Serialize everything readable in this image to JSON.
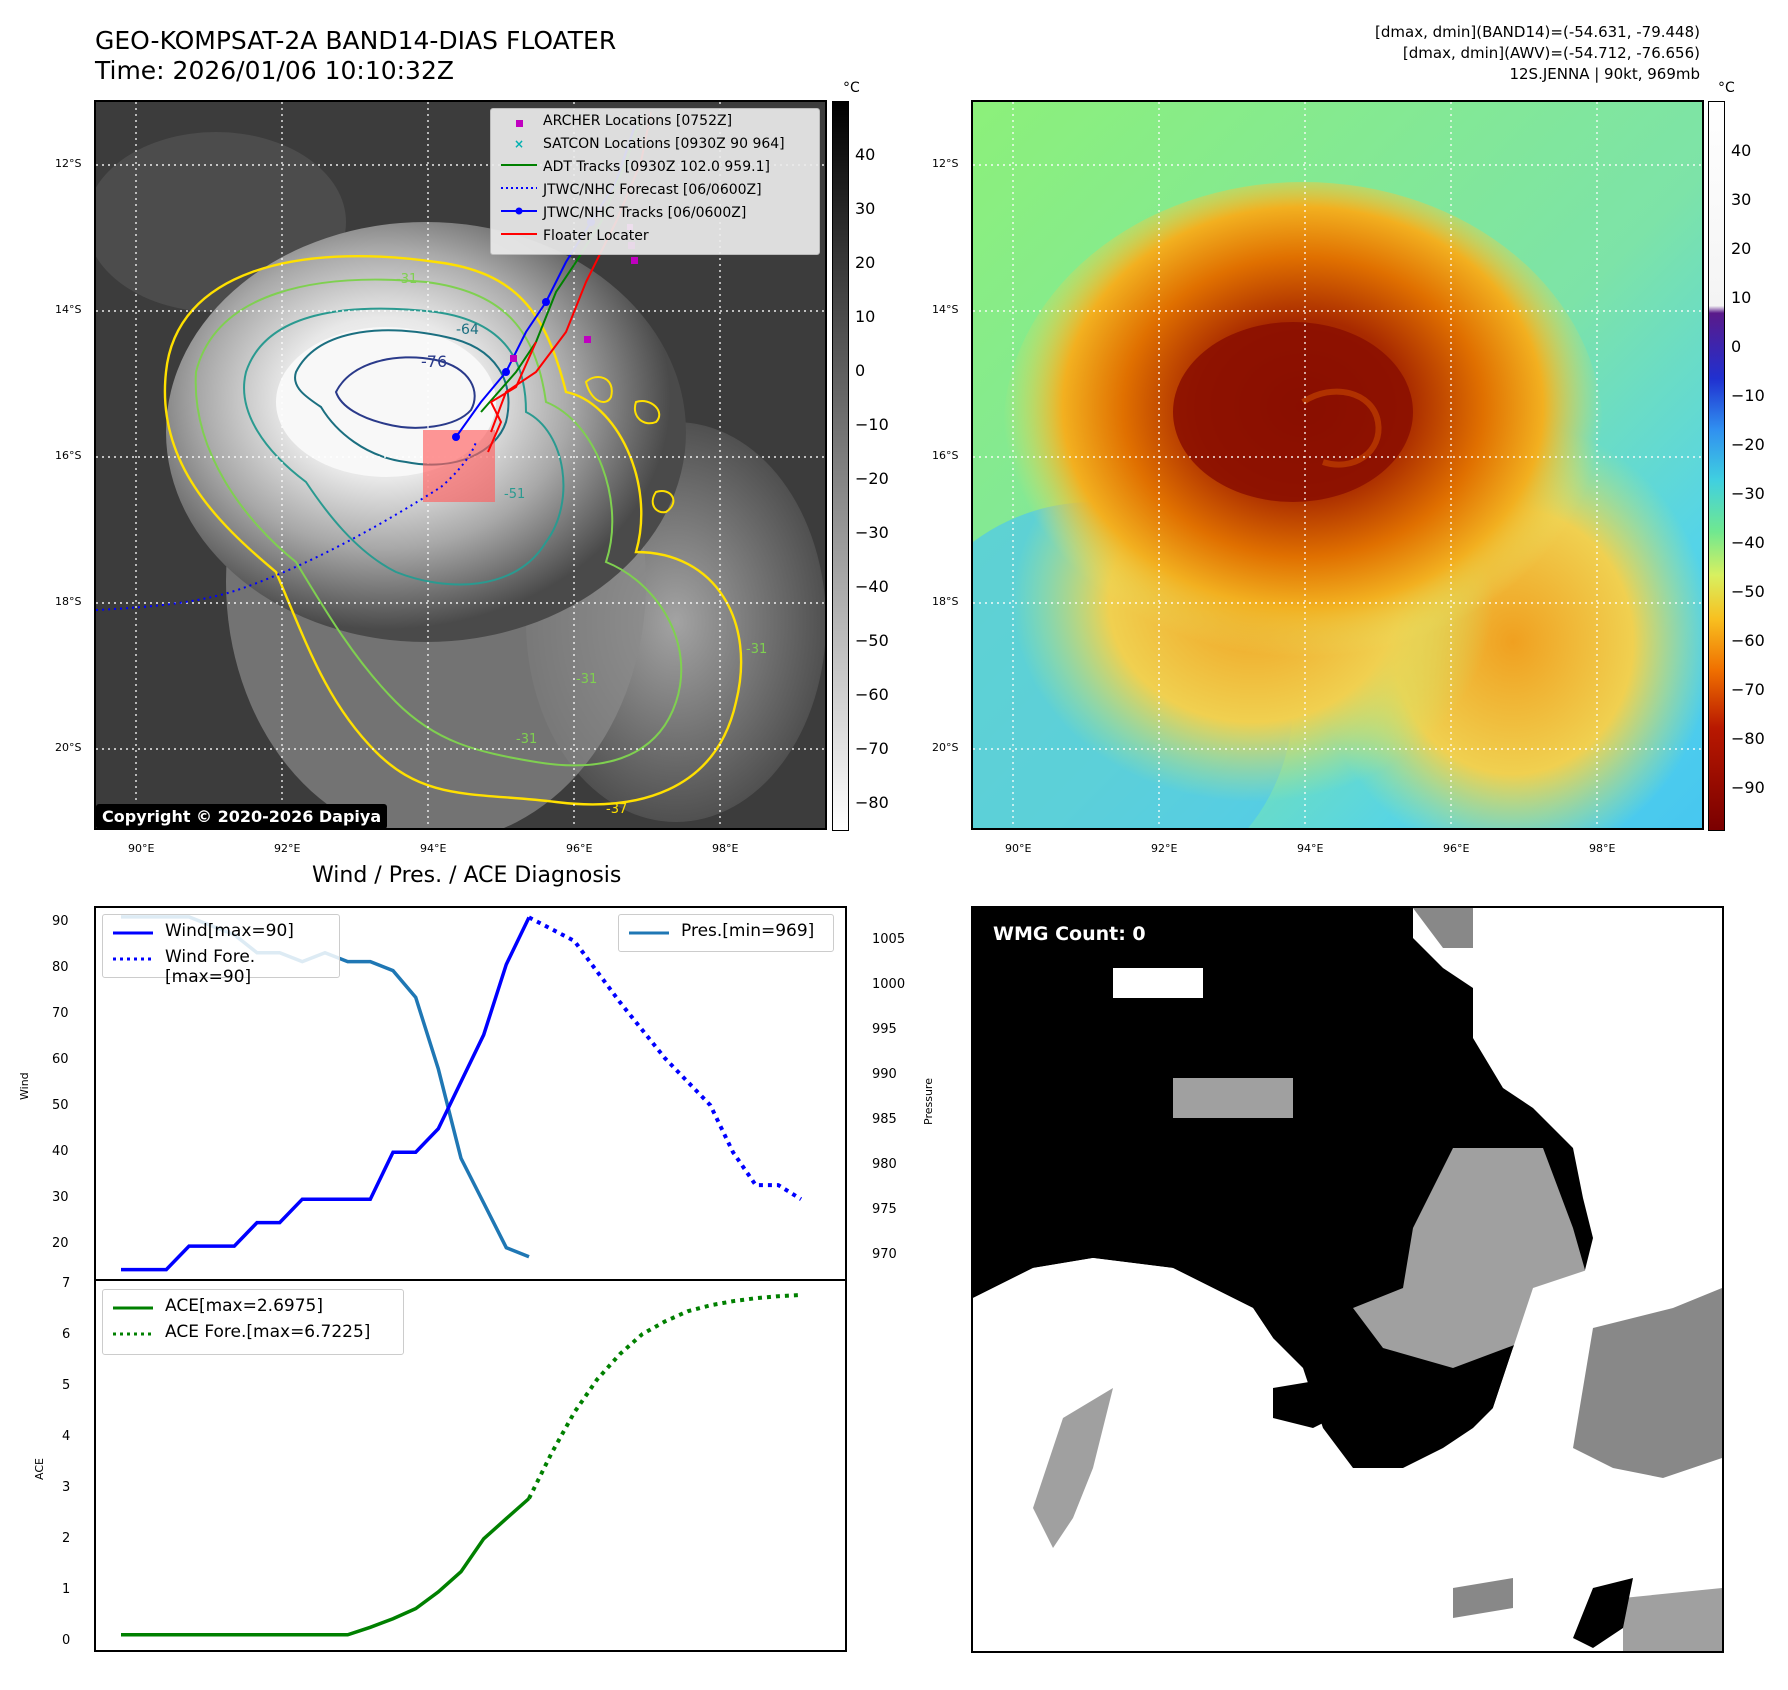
{
  "header": {
    "title_line1": "GEO-KOMPSAT-2A BAND14-DIAS FLOATER",
    "title_line2": "Time: 2026/01/06 10:10:32Z",
    "info_line1": "[dmax, dmin](BAND14)=(-54.631, -79.448)",
    "info_line2": "[dmax, dmin](AWV)=(-54.712, -76.656)",
    "info_line3": "12S.JENNA | 90kt, 969mb"
  },
  "map": {
    "lon_labels": [
      "90°E",
      "92°E",
      "94°E",
      "96°E",
      "98°E"
    ],
    "lat_labels": [
      "12°S",
      "14°S",
      "16°S",
      "18°S",
      "20°S"
    ],
    "copyright": "Copyright © 2020-2026 Dapiya",
    "contour_labels": [
      "-76",
      "-64",
      "-51",
      "-31",
      "-37",
      "-31",
      "-31",
      "-31"
    ],
    "legend": [
      {
        "label": "ARCHER Locations [0752Z]",
        "color": "#c000c0"
      },
      {
        "label": "SATCON Locations [0930Z 90 964]",
        "color": "#00b0b0"
      },
      {
        "label": "ADT Tracks [0930Z 102.0 959.1]",
        "color": "#008000"
      },
      {
        "label": "JTWC/NHC Forecast [06/0600Z]",
        "color": "#0000ff"
      },
      {
        "label": "JTWC/NHC Tracks [06/0600Z]",
        "color": "#0000ff"
      },
      {
        "label": "Floater Locater",
        "color": "#ff0000"
      }
    ]
  },
  "colorbar_gray": {
    "unit": "°C",
    "ticks": [
      "40",
      "30",
      "20",
      "10",
      "0",
      "−10",
      "−20",
      "−30",
      "−40",
      "−50",
      "−60",
      "−70",
      "−80"
    ]
  },
  "colorbar_color": {
    "unit": "°C",
    "ticks": [
      "40",
      "30",
      "20",
      "10",
      "0",
      "−10",
      "−20",
      "−30",
      "−40",
      "−50",
      "−60",
      "−70",
      "−80",
      "−90"
    ]
  },
  "diagnosis": {
    "title": "Wind / Pres. / ACE Diagnosis",
    "wind_ylabel": "Wind",
    "pres_ylabel": "Pressure",
    "ace_ylabel": "ACE",
    "wind_legend": "Wind[max=90]",
    "wind_fore_legend": "Wind Fore.[max=90]",
    "pres_legend": "Pres.[min=969]",
    "ace_legend": "ACE[max=2.6975]",
    "ace_fore_legend": "ACE Fore.[max=6.7225]",
    "wind_ticks": [
      "90",
      "80",
      "70",
      "60",
      "50",
      "40",
      "30",
      "20"
    ],
    "pres_ticks": [
      "1005",
      "1000",
      "995",
      "990",
      "985",
      "980",
      "975",
      "970"
    ],
    "ace_ticks": [
      "7",
      "6",
      "5",
      "4",
      "3",
      "2",
      "1",
      "0"
    ]
  },
  "wmg": {
    "label": "WMG Count: 0"
  },
  "chart_data": [
    {
      "type": "line",
      "title": "Wind / Pres. / ACE Diagnosis",
      "ylabel": "Wind",
      "ylim": [
        13,
        92
      ],
      "series": [
        {
          "name": "Wind[max=90]",
          "x": [
            0,
            1,
            2,
            3,
            4,
            5,
            6,
            7,
            8,
            9,
            10,
            11,
            12,
            13,
            14,
            15,
            16,
            17,
            18
          ],
          "values": [
            15,
            15,
            15,
            20,
            20,
            20,
            25,
            25,
            30,
            30,
            30,
            30,
            40,
            40,
            45,
            55,
            65,
            80,
            90
          ]
        },
        {
          "name": "Wind Fore.[max=90]",
          "x": [
            18,
            20,
            22,
            24,
            26,
            27,
            28,
            29,
            30
          ],
          "values": [
            90,
            85,
            72,
            60,
            50,
            40,
            33,
            33,
            30
          ]
        }
      ]
    },
    {
      "type": "line",
      "ylabel": "Pressure",
      "ylim": [
        966.5,
        1008
      ],
      "series": [
        {
          "name": "Pres.[min=969]",
          "x": [
            0,
            1,
            2,
            3,
            4,
            5,
            6,
            7,
            8,
            9,
            10,
            11,
            12,
            13,
            14,
            15,
            16,
            17,
            18
          ],
          "values": [
            1007,
            1007,
            1007,
            1007,
            1006,
            1005,
            1003,
            1003,
            1002,
            1003,
            1002,
            1002,
            1001,
            998,
            990,
            980,
            975,
            970,
            969
          ]
        }
      ]
    },
    {
      "type": "line",
      "ylabel": "ACE",
      "ylim": [
        -0.3,
        7
      ],
      "series": [
        {
          "name": "ACE[max=2.6975]",
          "x": [
            0,
            1,
            2,
            3,
            4,
            5,
            6,
            7,
            8,
            9,
            10,
            11,
            12,
            13,
            14,
            15,
            16,
            17,
            18
          ],
          "values": [
            0,
            0,
            0,
            0,
            0,
            0,
            0,
            0,
            0,
            0,
            0,
            0.15,
            0.32,
            0.52,
            0.85,
            1.25,
            1.9,
            2.3,
            2.6975
          ]
        },
        {
          "name": "ACE Fore.[max=6.7225]",
          "x": [
            18,
            19,
            20,
            21,
            22,
            23,
            24,
            25,
            26,
            27,
            28,
            29,
            30
          ],
          "values": [
            2.6975,
            3.6,
            4.4,
            5.05,
            5.55,
            5.95,
            6.2,
            6.4,
            6.52,
            6.6,
            6.66,
            6.7,
            6.7225
          ]
        }
      ]
    }
  ]
}
